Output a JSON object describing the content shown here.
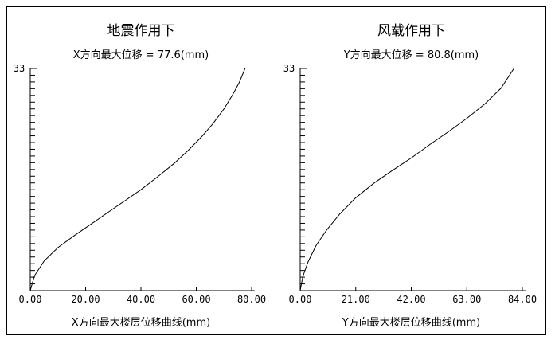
{
  "chart_data": [
    {
      "type": "line",
      "title": "地震作用下",
      "subtitle": "X方向最大位移 = 77.6(mm)",
      "xlabel": "X方向最大楼层位移曲线(mm)",
      "ylabel": "",
      "xlim": [
        0,
        80
      ],
      "ylim": [
        0,
        33
      ],
      "xticks": [
        "0.00",
        "20.00",
        "40.00",
        "60.00",
        "80.00"
      ],
      "ytick_top": "33",
      "grid": false,
      "series": [
        {
          "x": [
            0,
            1.5,
            5,
            10,
            16,
            22,
            28,
            34,
            40,
            46,
            52,
            57,
            62,
            66,
            70,
            73,
            75.5,
            77.6
          ],
          "y": [
            0,
            2.2,
            4.4,
            6.4,
            8.2,
            9.9,
            11.6,
            13.3,
            15.0,
            16.9,
            18.9,
            20.8,
            22.9,
            24.8,
            27.0,
            29.0,
            30.9,
            33
          ]
        }
      ]
    },
    {
      "type": "line",
      "title": "风载作用下",
      "subtitle": "Y方向最大位移 = 80.8(mm)",
      "xlabel": "Y方向最大楼层位移曲线(mm)",
      "ylabel": "",
      "xlim": [
        0,
        84
      ],
      "ylim": [
        0,
        33
      ],
      "xticks": [
        "0.00",
        "21.00",
        "42.00",
        "63.00",
        "84.00"
      ],
      "ytick_top": "33",
      "grid": false,
      "series": [
        {
          "x": [
            0,
            1,
            3,
            6,
            10,
            15,
            21,
            28,
            35,
            42,
            49,
            56,
            63,
            70,
            76,
            80.8
          ],
          "y": [
            0,
            2.1,
            4.3,
            6.7,
            9.0,
            11.4,
            13.8,
            16.0,
            17.9,
            19.7,
            21.7,
            23.6,
            25.6,
            27.8,
            30.1,
            33
          ]
        }
      ]
    }
  ]
}
